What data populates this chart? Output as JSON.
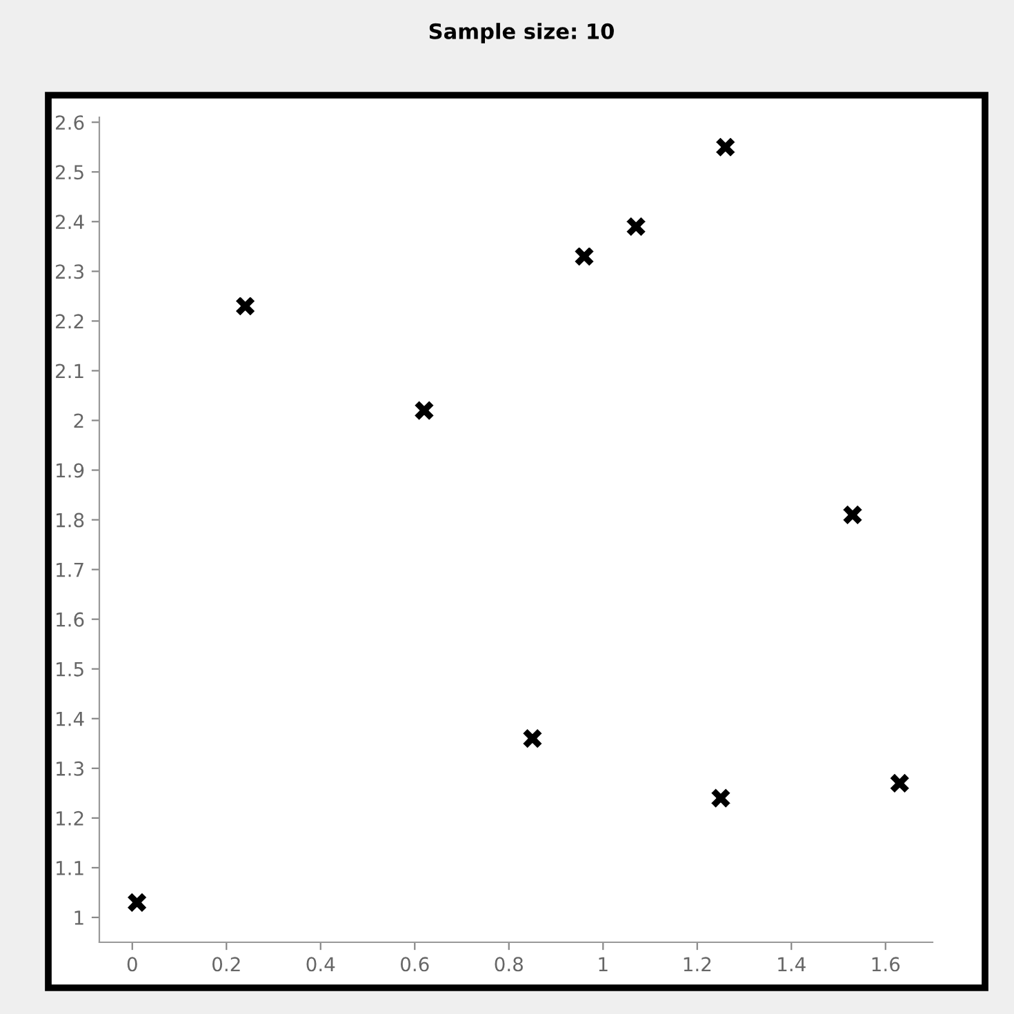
{
  "chart_data": {
    "type": "scatter",
    "title": "Sample size: 10",
    "x": [
      0.01,
      0.24,
      0.62,
      0.85,
      0.96,
      1.07,
      1.26,
      1.25,
      1.53,
      1.63
    ],
    "series": [
      {
        "color": "#000000",
        "values": [
          1.03,
          2.23,
          2.02,
          1.36,
          2.33,
          2.39,
          2.55,
          1.24,
          1.81,
          1.27
        ]
      }
    ],
    "xlim": [
      -0.07,
      1.7
    ],
    "ylim": [
      0.95,
      2.61
    ],
    "xticks": [
      0,
      0.2,
      0.4,
      0.6,
      0.8,
      1,
      1.2,
      1.4,
      1.6
    ],
    "yticks": [
      1,
      1.1,
      1.2,
      1.3,
      1.4,
      1.5,
      1.6,
      1.7,
      1.8,
      1.9,
      2,
      2.1,
      2.2,
      2.3,
      2.4,
      2.5,
      2.6
    ],
    "marker": "cross",
    "grid": false
  }
}
